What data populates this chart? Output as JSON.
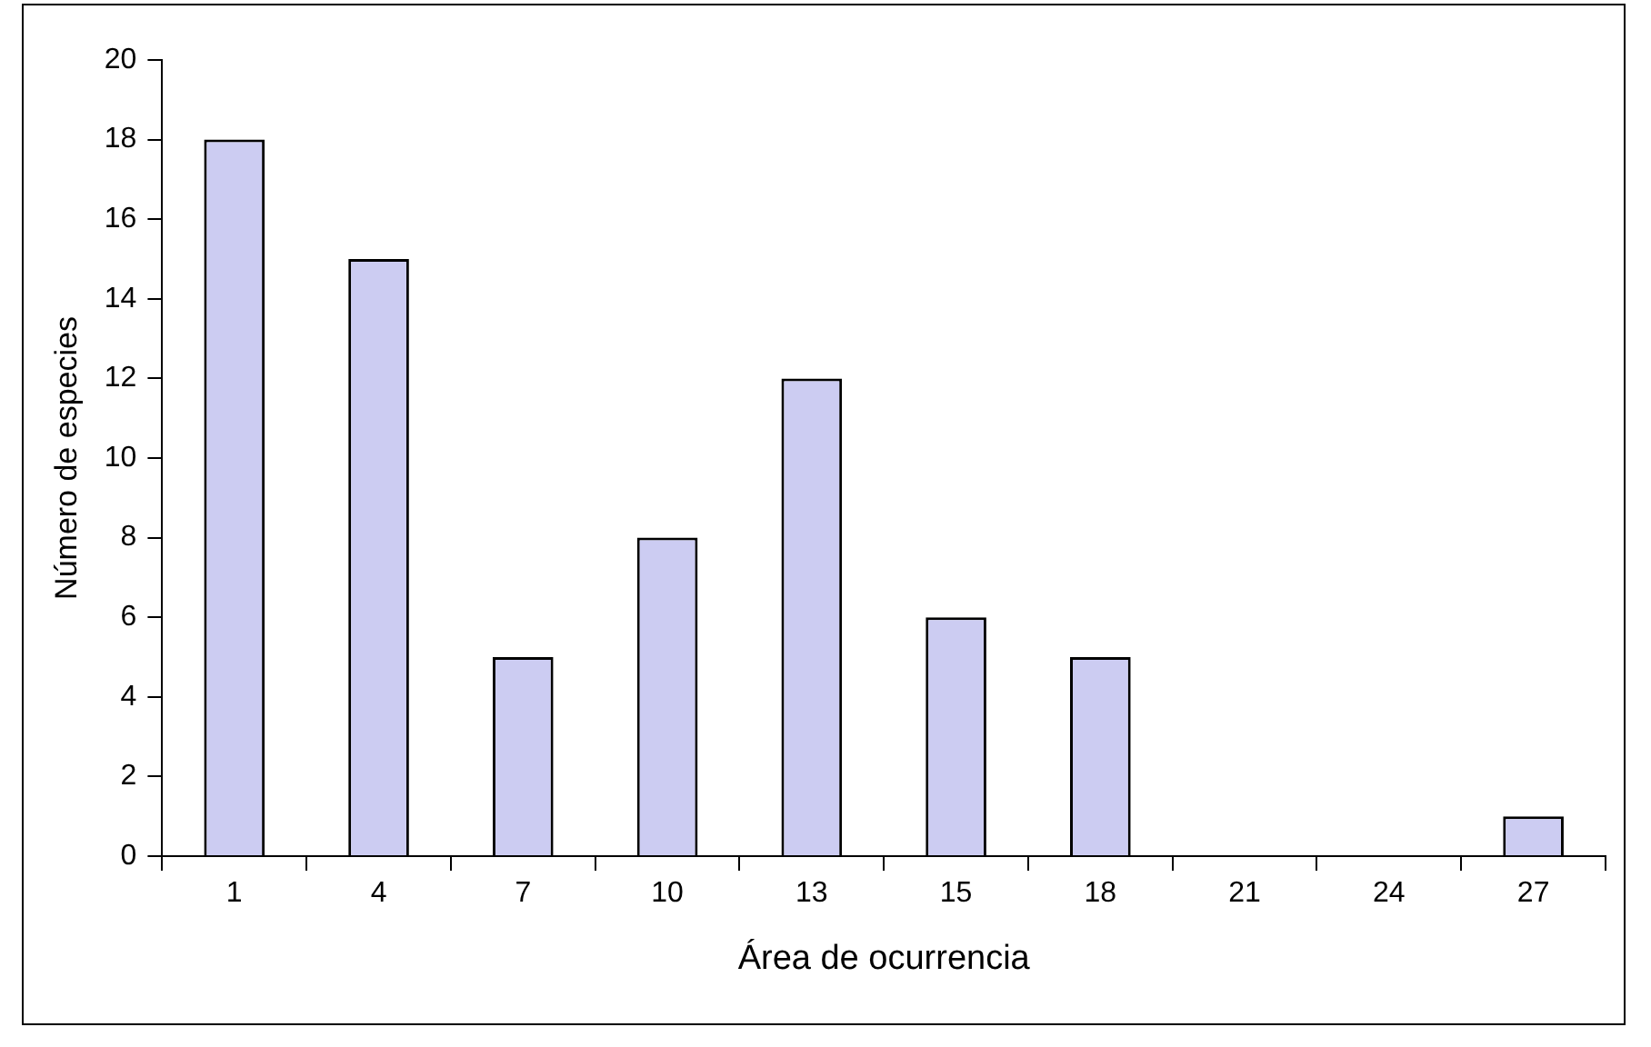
{
  "chart_data": {
    "type": "bar",
    "xlabel": "Área de ocurrencia",
    "ylabel": "Número de especies",
    "categories": [
      "1",
      "4",
      "7",
      "10",
      "13",
      "15",
      "18",
      "21",
      "24",
      "27"
    ],
    "values": [
      18,
      15,
      5,
      8,
      12,
      6,
      5,
      0,
      0,
      1
    ],
    "color": "#ccccf2",
    "ylim": [
      0,
      20
    ],
    "yticks": [
      0,
      2,
      4,
      6,
      8,
      10,
      12,
      14,
      16,
      18,
      20
    ],
    "grid": false,
    "legend": false
  }
}
